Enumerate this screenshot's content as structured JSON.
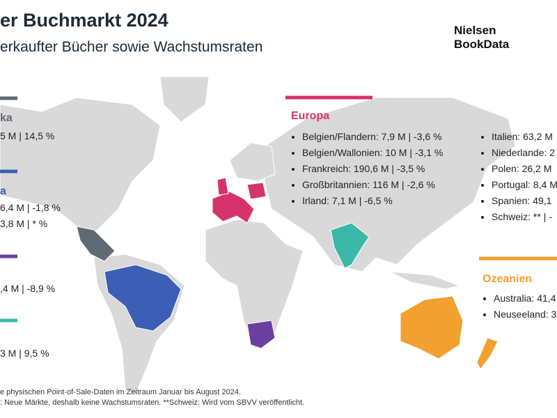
{
  "header": {
    "title": "er Buchmarkt 2024",
    "subtitle": "erkaufter Bücher sowie Wachstumsraten"
  },
  "logo": [
    "Nielsen",
    "BookData"
  ],
  "regions": [
    {
      "name": "ka",
      "items": [
        "5 M | 14,5 %"
      ]
    },
    {
      "name": "a",
      "items": [
        "6,4 M | -1,8 %",
        "3,8 M | * %"
      ]
    },
    {
      "items": [
        ",4 M | -8,9 %"
      ]
    },
    {
      "items": [
        "3 M | 9,5 %"
      ]
    },
    {
      "name": "Europa",
      "columns": [
        [
          "Belgien/Flandern: 7,9 M | -3,6 %",
          "Belgien/Wallonien: 10 M | -3,1 %",
          "Frankreich: 190,6 M | -3,5 %",
          "Großbritannien: 116 M | -2,6 %",
          "Irland: 7,1 M | -6,5 %"
        ],
        [
          "Italien: 63,2 M",
          "Niederlande: 2",
          "Polen: 26,2 M",
          "Portugal: 8,4 M",
          "Spanien: 49,1",
          "Schweiz: ** | -"
        ]
      ]
    },
    {
      "name": "Ozeanien",
      "items": [
        "Australia: 41,4",
        "Neuseeland: 3"
      ]
    }
  ],
  "footnotes": [
    "e physischen Point-of-Sale-Daten im Zeitraum Januar bis August 2024.",
    ": Neue Märkte, deshalb keine Wachstumsraten. **Schweiz: Wird vom SBVV veröffentlicht."
  ]
}
